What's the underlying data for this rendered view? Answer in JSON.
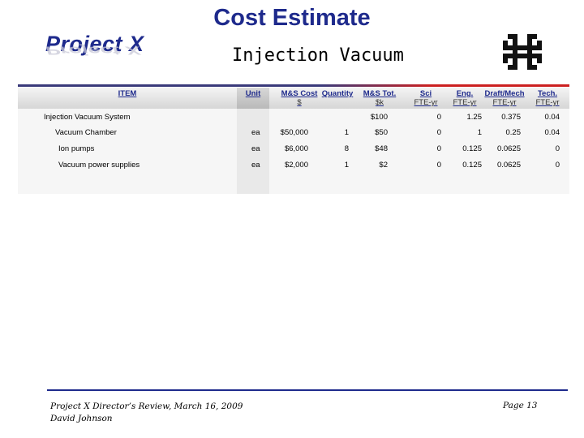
{
  "header": {
    "title": "Cost Estimate",
    "subtitle": "Injection Vacuum",
    "logo_text": "Project X"
  },
  "colors": {
    "title": "#1e2a8c",
    "rule_left": "#3a3a7a",
    "rule_right": "#cc2020",
    "header_text": "#1e2a8c"
  },
  "table": {
    "columns": [
      {
        "label": "ITEM",
        "sub": ""
      },
      {
        "label": "Unit",
        "sub": ""
      },
      {
        "label": "M&S Cost",
        "sub": "$"
      },
      {
        "label": "Quantity",
        "sub": ""
      },
      {
        "label": "M&S Tot.",
        "sub": "$k"
      },
      {
        "label": "Sci",
        "sub": "FTE-yr"
      },
      {
        "label": "Eng.",
        "sub": "FTE-yr"
      },
      {
        "label": "Draft/Mech",
        "sub": "FTE-yr"
      },
      {
        "label": "Tech.",
        "sub": "FTE-yr"
      }
    ],
    "rows": [
      {
        "item": "Injection Vacuum System",
        "unit": "",
        "cost": "",
        "qty": "",
        "total": "$100",
        "sci": "0",
        "eng": "1.25",
        "draft": "0.375",
        "tech": "0.04"
      },
      {
        "item": "Vacuum Chamber",
        "unit": "ea",
        "cost": "$50,000",
        "qty": "1",
        "total": "$50",
        "sci": "0",
        "eng": "1",
        "draft": "0.25",
        "tech": "0.04"
      },
      {
        "item": "Ion pumps",
        "unit": "ea",
        "cost": "$6,000",
        "qty": "8",
        "total": "$48",
        "sci": "0",
        "eng": "0.125",
        "draft": "0.0625",
        "tech": "0"
      },
      {
        "item": "Vacuum power supplies",
        "unit": "ea",
        "cost": "$2,000",
        "qty": "1",
        "total": "$2",
        "sci": "0",
        "eng": "0.125",
        "draft": "0.0625",
        "tech": "0"
      }
    ]
  },
  "footer": {
    "line1": "Project X Director’s Review, March 16, 2009",
    "line2": "David Johnson",
    "page": "Page 13"
  }
}
